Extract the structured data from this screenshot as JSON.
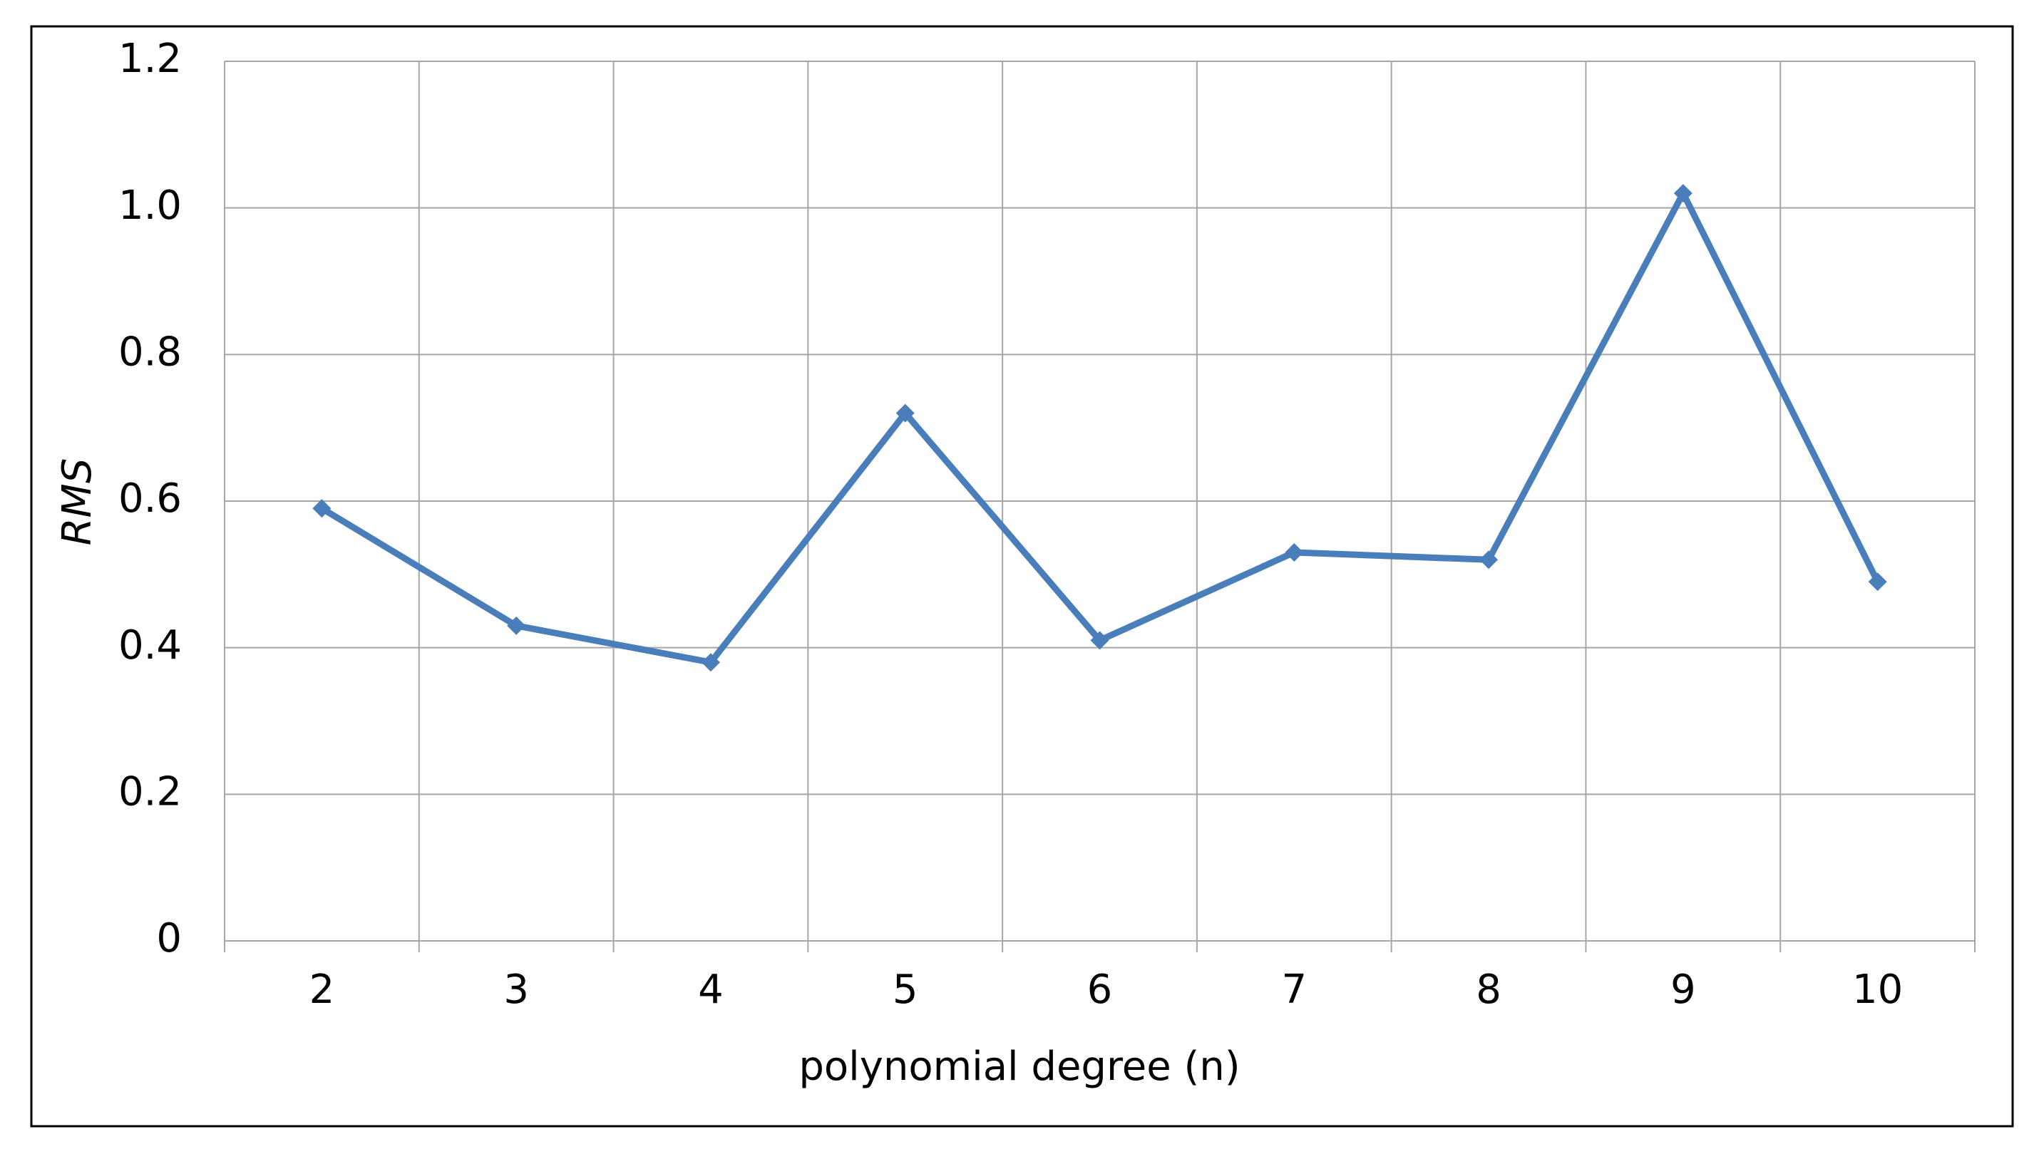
{
  "chart_data": {
    "type": "line",
    "x_label": "polynomial degree (n)",
    "y_label": "RMS",
    "categories": [
      "2",
      "3",
      "4",
      "5",
      "6",
      "7",
      "8",
      "9",
      "10"
    ],
    "series": [
      {
        "name": "RMS",
        "color": "#4a7ebb",
        "values": [
          0.59,
          0.43,
          0.38,
          0.72,
          0.41,
          0.53,
          0.52,
          1.02,
          0.49
        ]
      }
    ],
    "ylim": [
      0,
      1.2
    ],
    "yticks": [
      0,
      0.2,
      0.4,
      0.6,
      0.8,
      {
        "value": 1,
        "label": "1.0"
      },
      1.2
    ],
    "grid": true
  }
}
